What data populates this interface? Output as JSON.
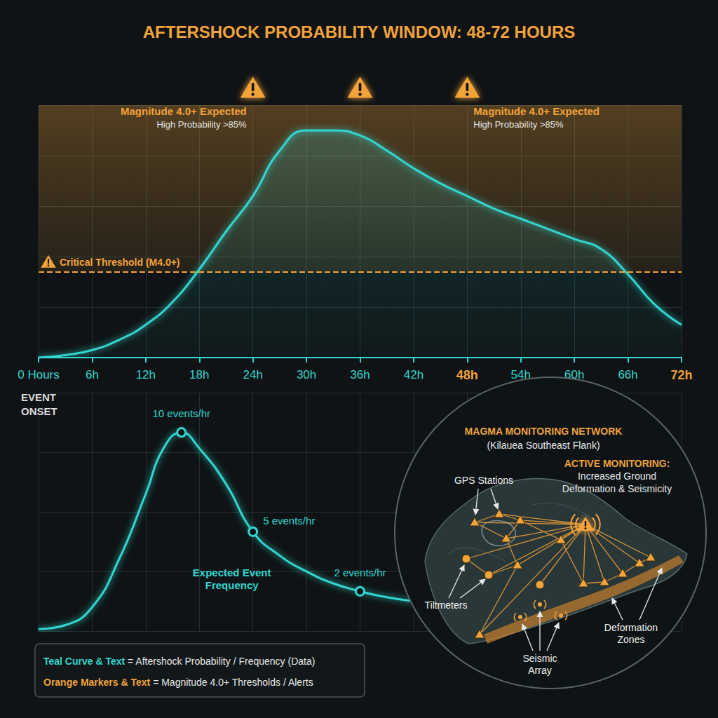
{
  "chart_data": [
    {
      "type": "line",
      "title": "AFTERSHOCK PROBABILITY WINDOW: 48-72 HOURS",
      "x": [
        0,
        3,
        6,
        9,
        12,
        15,
        18,
        21,
        24,
        27,
        30,
        33,
        36,
        39,
        42,
        45,
        48,
        51,
        54,
        57,
        60,
        63,
        66,
        69,
        72
      ],
      "values": [
        0,
        1,
        3,
        7,
        13,
        22,
        35,
        50,
        64,
        82,
        90,
        90,
        88,
        82,
        75,
        69,
        64,
        59,
        55,
        51,
        47,
        43,
        33,
        21,
        13
      ],
      "color": "#33d6cf",
      "xlim": [
        0,
        72
      ],
      "xticks": [
        {
          "value": 0,
          "label": "0 Hours"
        },
        {
          "value": 6,
          "label": "6h"
        },
        {
          "value": 12,
          "label": "12h"
        },
        {
          "value": 18,
          "label": "18h"
        },
        {
          "value": 24,
          "label": "24h"
        },
        {
          "value": 30,
          "label": "30h"
        },
        {
          "value": 36,
          "label": "36h"
        },
        {
          "value": 42,
          "label": "42h"
        },
        {
          "value": 48,
          "label": "48h"
        },
        {
          "value": 54,
          "label": "54h"
        },
        {
          "value": 60,
          "label": "60h"
        },
        {
          "value": 66,
          "label": "66h"
        },
        {
          "value": 72,
          "label": "72h"
        }
      ],
      "ylim": [
        0,
        100
      ],
      "yticks": [
        0,
        20,
        40,
        60,
        80,
        100
      ],
      "grid": true,
      "tick_labels": "x",
      "window": [
        48,
        72
      ],
      "threshold": {
        "value": 34,
        "label": "Critical Threshold (M4.0+)"
      },
      "alerts": [
        {
          "x": 24,
          "marker": "warning",
          "text": "Magnitude 4.0+ Expected",
          "subtext": "High Probability >85%"
        },
        {
          "x": 36,
          "marker": "warning"
        },
        {
          "x": 48,
          "marker": "warning",
          "text": "Magnitude 4.0+ Expected",
          "subtext": "High Probability >85%"
        },
        {
          "x": 72
        }
      ],
      "annotations": [
        {
          "x": 0,
          "text": "EVENT ONSET"
        }
      ]
    },
    {
      "type": "line",
      "x": [
        0,
        3,
        6,
        9,
        12,
        14,
        16,
        18,
        21,
        24,
        27,
        30,
        33,
        36,
        39,
        42
      ],
      "values": [
        0.1,
        0.3,
        1.2,
        3.6,
        6.9,
        9.2,
        10,
        9.2,
        7.4,
        5,
        3.8,
        3,
        2.4,
        2,
        1.7,
        1.5
      ],
      "value_labels": [
        null,
        null,
        null,
        null,
        null,
        null,
        "10 events/hr",
        null,
        null,
        "5 events/hr",
        null,
        null,
        null,
        "2 events/hr",
        null,
        null
      ],
      "data_labels": true,
      "color": "#33d6cf",
      "xlim": [
        0,
        72
      ],
      "xticks": [
        0,
        6,
        12,
        18,
        24,
        30,
        36,
        42,
        48,
        54,
        60,
        66,
        72
      ],
      "ylim": [
        0,
        12
      ],
      "yticks": [
        0,
        3,
        6,
        9,
        12
      ],
      "grid": true,
      "tick_labels": false,
      "annotations": [
        {
          "text": "Expected Event Frequency"
        }
      ]
    }
  ],
  "key": [
    {
      "text": "Teal Curve & Text = Aftershock Probability / Frequency (Data)",
      "color": "#33d6cf"
    },
    {
      "text": "Orange Markers & Text = Magnitude 4.0+ Thresholds / Alerts",
      "color": "#f2a33a"
    }
  ],
  "diagram": {
    "title": "MAGMA MONITORING NETWORK",
    "subtitle": "(Kilauea Southeast Flank)",
    "status": {
      "title": "ACTIVE MONITORING:",
      "text": "Increased Ground Deformation & Seismicity"
    },
    "labels": [
      "GPS Stations",
      "Tiltmeters",
      "Seismic Array",
      "Deformation Zones"
    ]
  }
}
